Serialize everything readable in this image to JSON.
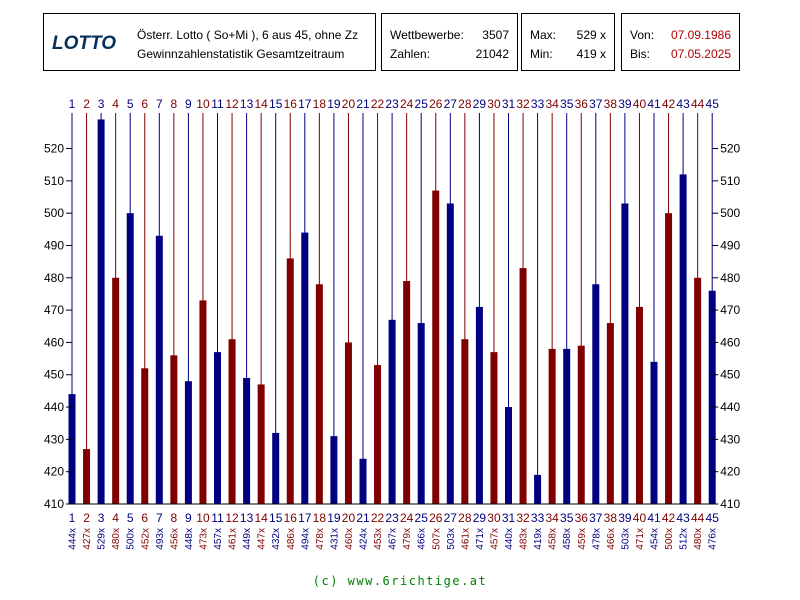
{
  "header": {
    "logo": "LOTTO",
    "line1": "Österr. Lotto ( So+Mi ), 6 aus 45, ohne Zz",
    "line2": "Gewinnzahlenstatistik Gesamtzeitraum",
    "wettbewerbe_label": "Wettbewerbe:",
    "wettbewerbe_value": "3507",
    "zahlen_label": "Zahlen:",
    "zahlen_value": "21042",
    "max_label": "Max:",
    "max_value": "529 x",
    "min_label": "Min:",
    "min_value": "419 x",
    "von_label": "Von:",
    "von_value": "07.09.1986",
    "bis_label": "Bis:",
    "bis_value": "07.05.2025"
  },
  "footer": "(c) www.6richtige.at",
  "colors": {
    "blue": "#000080",
    "red": "#800000",
    "grid": "#000000",
    "redText": "#b00000"
  },
  "chart_data": {
    "type": "bar",
    "categories": [
      "1",
      "2",
      "3",
      "4",
      "5",
      "6",
      "7",
      "8",
      "9",
      "10",
      "11",
      "12",
      "13",
      "14",
      "15",
      "16",
      "17",
      "18",
      "19",
      "20",
      "21",
      "22",
      "23",
      "24",
      "25",
      "26",
      "27",
      "28",
      "29",
      "30",
      "31",
      "32",
      "33",
      "34",
      "35",
      "36",
      "37",
      "38",
      "39",
      "40",
      "41",
      "42",
      "43",
      "44",
      "45"
    ],
    "values": [
      444,
      427,
      529,
      480,
      500,
      452,
      493,
      456,
      448,
      473,
      457,
      461,
      449,
      447,
      432,
      486,
      494,
      478,
      431,
      460,
      424,
      453,
      467,
      479,
      466,
      507,
      503,
      461,
      471,
      457,
      440,
      483,
      419,
      458,
      458,
      459,
      478,
      466,
      503,
      471,
      454,
      500,
      512,
      480,
      476
    ],
    "value_labels": [
      "444x",
      "427x",
      "529x",
      "480x",
      "500x",
      "452x",
      "493x",
      "456x",
      "448x",
      "473x",
      "457x",
      "461x",
      "449x",
      "447x",
      "432x",
      "486x",
      "494x",
      "478x",
      "431x",
      "460x",
      "424x",
      "453x",
      "467x",
      "479x",
      "466x",
      "507x",
      "503x",
      "461x",
      "471x",
      "457x",
      "440x",
      "483x",
      "419x",
      "458x",
      "458x",
      "459x",
      "478x",
      "466x",
      "503x",
      "471x",
      "454x",
      "500x",
      "512x",
      "480x",
      "476x"
    ],
    "y_ticks": [
      "410",
      "420",
      "430",
      "440",
      "450",
      "460",
      "470",
      "480",
      "490",
      "500",
      "510",
      "520"
    ],
    "ylim": [
      410,
      531
    ],
    "grid": false,
    "colors_alternate": [
      "#000080",
      "#800000"
    ]
  }
}
